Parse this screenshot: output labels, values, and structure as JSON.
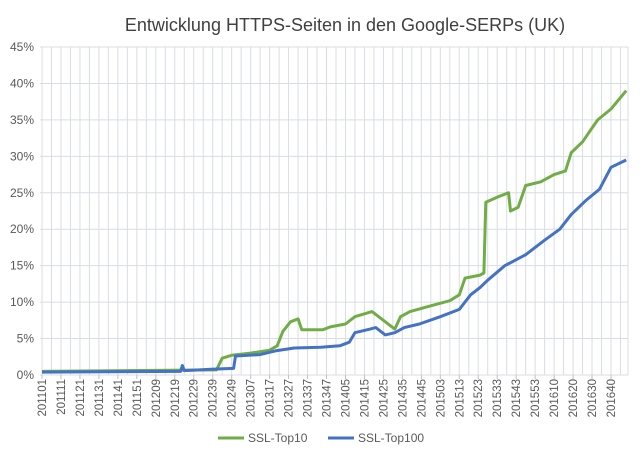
{
  "chart_data": {
    "type": "line",
    "title": "Entwicklung HTTPS-Seiten in den Google-SERPs (UK)",
    "xlabel": "",
    "ylabel": "",
    "x_unit": "week index from 201101",
    "x_tick_labels": [
      "201101",
      "201111",
      "201121",
      "201131",
      "201141",
      "201151",
      "201209",
      "201219",
      "201229",
      "201239",
      "201249",
      "201307",
      "201317",
      "201327",
      "201337",
      "201347",
      "201405",
      "201415",
      "201425",
      "201435",
      "201445",
      "201503",
      "201513",
      "201523",
      "201533",
      "201543",
      "201553",
      "201610",
      "201620",
      "201630",
      "201640"
    ],
    "y_tick_labels": [
      "0%",
      "5%",
      "10%",
      "15%",
      "20%",
      "25%",
      "30%",
      "35%",
      "40%",
      "45%"
    ],
    "ylim": [
      0,
      45
    ],
    "xlim": [
      0,
      308
    ],
    "grid": true,
    "legend_position": "bottom",
    "series": [
      {
        "name": "SSL-Top10",
        "color": "#70ad47",
        "points": [
          [
            0,
            0.5
          ],
          [
            91,
            0.7
          ],
          [
            92,
            0.7
          ],
          [
            95,
            2.3
          ],
          [
            100,
            2.7
          ],
          [
            110,
            3.0
          ],
          [
            120,
            3.4
          ],
          [
            124,
            4.0
          ],
          [
            127,
            6.0
          ],
          [
            131,
            7.3
          ],
          [
            135,
            7.7
          ],
          [
            137,
            6.2
          ],
          [
            148,
            6.2
          ],
          [
            152,
            6.6
          ],
          [
            160,
            7.0
          ],
          [
            165,
            8.0
          ],
          [
            174,
            8.7
          ],
          [
            186,
            6.3
          ],
          [
            189,
            8.0
          ],
          [
            194,
            8.7
          ],
          [
            205,
            9.5
          ],
          [
            215,
            10.2
          ],
          [
            220,
            11
          ],
          [
            223,
            13.3
          ],
          [
            231,
            13.7
          ],
          [
            233,
            14
          ],
          [
            234,
            23.7
          ],
          [
            241,
            24.5
          ],
          [
            246,
            25
          ],
          [
            247,
            22.5
          ],
          [
            251,
            23
          ],
          [
            255,
            26
          ],
          [
            263,
            26.5
          ],
          [
            270,
            27.5
          ],
          [
            276,
            28
          ],
          [
            279,
            30.5
          ],
          [
            285,
            32
          ],
          [
            289,
            33.5
          ],
          [
            293,
            35
          ],
          [
            300,
            36.5
          ],
          [
            308,
            39
          ]
        ]
      },
      {
        "name": "SSL-Top100",
        "color": "#4472c4",
        "points": [
          [
            0,
            0.4
          ],
          [
            73,
            0.5
          ],
          [
            74,
            1.3
          ],
          [
            75,
            0.6
          ],
          [
            83,
            0.7
          ],
          [
            89,
            0.8
          ],
          [
            101,
            0.9
          ],
          [
            102,
            2.6
          ],
          [
            115,
            2.8
          ],
          [
            123,
            3.3
          ],
          [
            133,
            3.7
          ],
          [
            147,
            3.8
          ],
          [
            157,
            4.0
          ],
          [
            162,
            4.5
          ],
          [
            165,
            5.8
          ],
          [
            173,
            6.3
          ],
          [
            176,
            6.5
          ],
          [
            181,
            5.5
          ],
          [
            186,
            5.8
          ],
          [
            191,
            6.5
          ],
          [
            199,
            7.0
          ],
          [
            210,
            8.0
          ],
          [
            220,
            9.0
          ],
          [
            226,
            11
          ],
          [
            231,
            12
          ],
          [
            235,
            13
          ],
          [
            244,
            15
          ],
          [
            255,
            16.5
          ],
          [
            265,
            18.5
          ],
          [
            273,
            20
          ],
          [
            279,
            22
          ],
          [
            287,
            24
          ],
          [
            294,
            25.5
          ],
          [
            300,
            28.5
          ],
          [
            308,
            29.5
          ]
        ]
      }
    ]
  }
}
